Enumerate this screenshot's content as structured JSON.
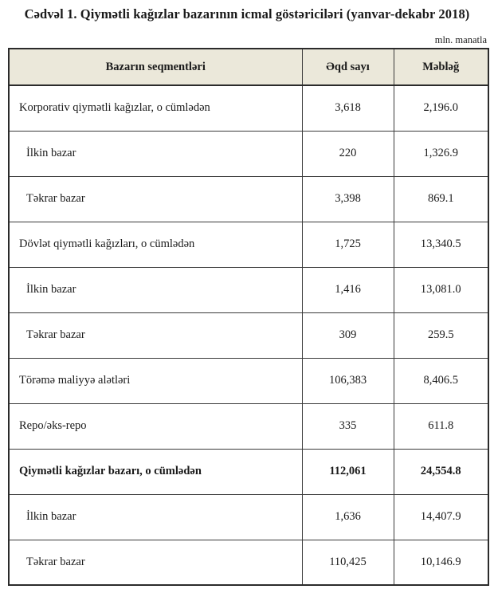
{
  "title": "Cədvəl 1. Qiymətli kağızlar bazarının icmal göstəriciləri (yanvar-dekabr 2018)",
  "unit_note": "mln. manatla",
  "table": {
    "columns": {
      "segment": "Bazarın seqmentləri",
      "deal_count": "Əqd sayı",
      "amount": "Məbləğ"
    },
    "rows": [
      {
        "label": "Korporativ qiymətli kağızlar, o cümlədən",
        "deal_count": "3,618",
        "amount": "2,196.0",
        "indent": false,
        "bold": false
      },
      {
        "label": "İlkin bazar",
        "deal_count": "220",
        "amount": "1,326.9",
        "indent": true,
        "bold": false
      },
      {
        "label": "Təkrar bazar",
        "deal_count": "3,398",
        "amount": "869.1",
        "indent": true,
        "bold": false
      },
      {
        "label": "Dövlət qiymətli kağızları, o cümlədən",
        "deal_count": "1,725",
        "amount": "13,340.5",
        "indent": false,
        "bold": false
      },
      {
        "label": "İlkin bazar",
        "deal_count": "1,416",
        "amount": "13,081.0",
        "indent": true,
        "bold": false
      },
      {
        "label": "Təkrar bazar",
        "deal_count": "309",
        "amount": "259.5",
        "indent": true,
        "bold": false
      },
      {
        "label": "Törəmə maliyyə alətləri",
        "deal_count": "106,383",
        "amount": "8,406.5",
        "indent": false,
        "bold": false
      },
      {
        "label": "Repo/əks-repo",
        "deal_count": "335",
        "amount": "611.8",
        "indent": false,
        "bold": false
      },
      {
        "label": "Qiymətli kağızlar bazarı, o cümlədən",
        "deal_count": "112,061",
        "amount": "24,554.8",
        "indent": false,
        "bold": true
      },
      {
        "label": "İlkin bazar",
        "deal_count": "1,636",
        "amount": "14,407.9",
        "indent": true,
        "bold": false
      },
      {
        "label": "Təkrar bazar",
        "deal_count": "110,425",
        "amount": "10,146.9",
        "indent": true,
        "bold": false
      }
    ]
  }
}
